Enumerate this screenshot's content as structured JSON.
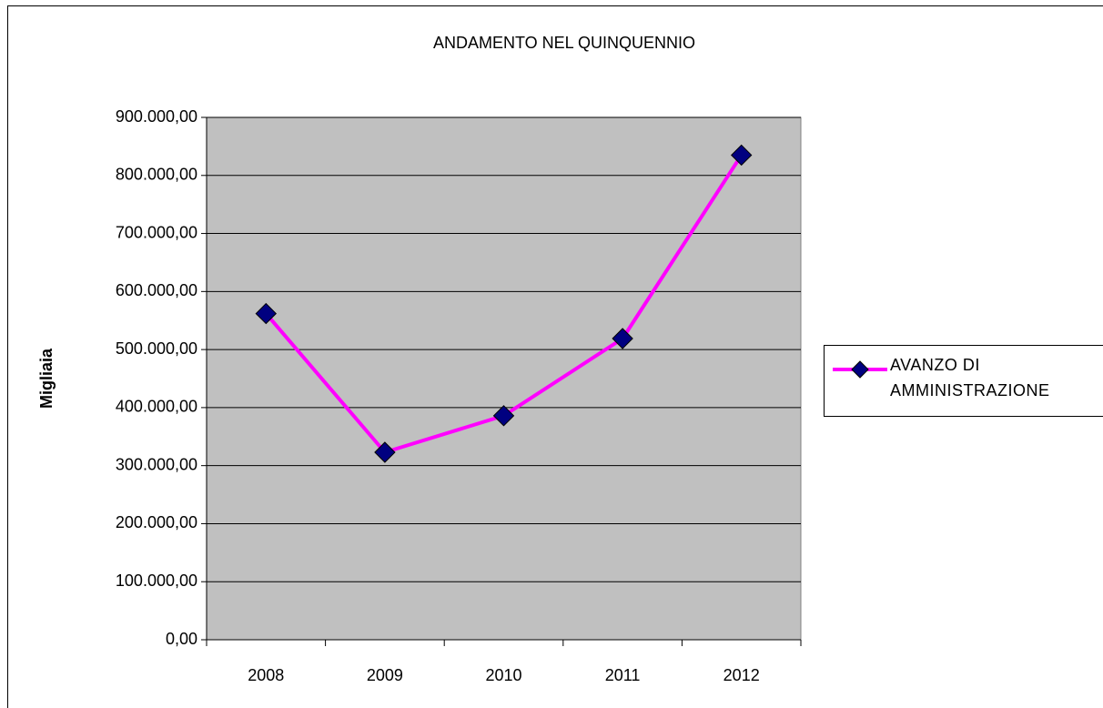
{
  "chart_data": {
    "type": "line",
    "title": "ANDAMENTO NEL QUINQUENNIO",
    "y_label": "Migliaia",
    "categories": [
      "2008",
      "2009",
      "2010",
      "2011",
      "2012"
    ],
    "series": [
      {
        "name": "AVANZO DI AMMINISTRAZIONE",
        "color": "#ff00ff",
        "marker_color": "#000080",
        "values": [
          562000,
          323000,
          386000,
          519000,
          835000
        ]
      }
    ],
    "ylim": [
      0,
      900000
    ],
    "yticks": [
      {
        "value": 0,
        "label": "0,00"
      },
      {
        "value": 100000,
        "label": "100.000,00"
      },
      {
        "value": 200000,
        "label": "200.000,00"
      },
      {
        "value": 300000,
        "label": "300.000,00"
      },
      {
        "value": 400000,
        "label": "400.000,00"
      },
      {
        "value": 500000,
        "label": "500.000,00"
      },
      {
        "value": 600000,
        "label": "600.000,00"
      },
      {
        "value": 700000,
        "label": "700.000,00"
      },
      {
        "value": 800000,
        "label": "800.000,00"
      },
      {
        "value": 900000,
        "label": "900.000,00"
      }
    ],
    "grid": true,
    "legend": "right",
    "plot_background": "#c0c0c0"
  }
}
